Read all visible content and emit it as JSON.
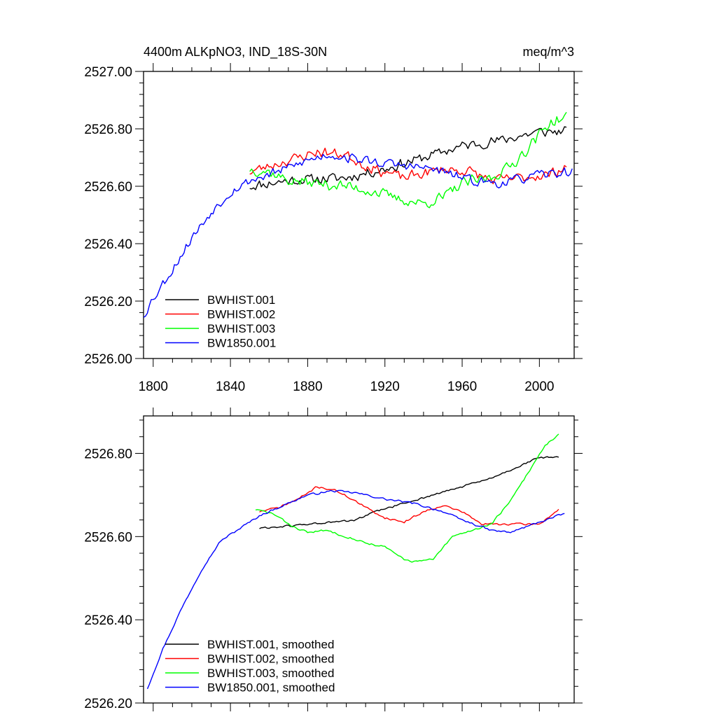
{
  "top": {
    "title_left": "4400m ALKpNO3, IND_18S-30N",
    "title_right": "meq/m^3"
  },
  "chart_data": [
    {
      "type": "line",
      "title": "4400m ALKpNO3, IND_18S-30N",
      "units": "meq/m^3",
      "xlim": [
        1795,
        2018
      ],
      "ylim": [
        2526.0,
        2527.0
      ],
      "xticks": [
        1800,
        1840,
        1880,
        1920,
        1960,
        2000
      ],
      "yticks": [
        2526.0,
        2526.2,
        2526.4,
        2526.6,
        2526.8,
        2527.0
      ],
      "ytick_labels": [
        "2526.00",
        "2526.20",
        "2526.40",
        "2526.60",
        "2526.80",
        "2527.00"
      ],
      "xtick_labels": [
        "1800",
        "1840",
        "1880",
        "1920",
        "1960",
        "2000"
      ],
      "legend": [
        "BWHIST.001",
        "BWHIST.002",
        "BWHIST.003",
        "BW1850.001"
      ],
      "legend_position": "bottom-left",
      "series": [
        {
          "name": "BWHIST.001",
          "color": "#000000",
          "noise": 0.022,
          "seed": 11,
          "keys": [
            [
              1850,
              2526.6
            ],
            [
              1870,
              2526.62
            ],
            [
              1900,
              2526.63
            ],
            [
              1920,
              2526.66
            ],
            [
              1940,
              2526.7
            ],
            [
              1960,
              2526.74
            ],
            [
              1980,
              2526.76
            ],
            [
              2000,
              2526.79
            ],
            [
              2014,
              2526.79
            ]
          ]
        },
        {
          "name": "BWHIST.002",
          "color": "#ff0000",
          "noise": 0.022,
          "seed": 23,
          "keys": [
            [
              1850,
              2526.65
            ],
            [
              1870,
              2526.69
            ],
            [
              1885,
              2526.72
            ],
            [
              1900,
              2526.71
            ],
            [
              1910,
              2526.67
            ],
            [
              1930,
              2526.63
            ],
            [
              1950,
              2526.66
            ],
            [
              1965,
              2526.65
            ],
            [
              1975,
              2526.62
            ],
            [
              1990,
              2526.63
            ],
            [
              2005,
              2526.64
            ],
            [
              2014,
              2526.67
            ]
          ]
        },
        {
          "name": "BWHIST.003",
          "color": "#00ff00",
          "noise": 0.024,
          "seed": 37,
          "keys": [
            [
              1850,
              2526.66
            ],
            [
              1860,
              2526.65
            ],
            [
              1870,
              2526.62
            ],
            [
              1885,
              2526.61
            ],
            [
              1900,
              2526.6
            ],
            [
              1915,
              2526.58
            ],
            [
              1930,
              2526.55
            ],
            [
              1940,
              2526.54
            ],
            [
              1950,
              2526.56
            ],
            [
              1960,
              2526.61
            ],
            [
              1975,
              2526.63
            ],
            [
              1985,
              2526.67
            ],
            [
              1995,
              2526.74
            ],
            [
              2005,
              2526.82
            ],
            [
              2014,
              2526.84
            ]
          ]
        },
        {
          "name": "BW1850.001",
          "color": "#0000ff",
          "noise": 0.02,
          "seed": 53,
          "keys": [
            [
              1795,
              2526.15
            ],
            [
              1800,
              2526.21
            ],
            [
              1810,
              2526.31
            ],
            [
              1820,
              2526.42
            ],
            [
              1830,
              2526.51
            ],
            [
              1840,
              2526.58
            ],
            [
              1850,
              2526.62
            ],
            [
              1860,
              2526.64
            ],
            [
              1880,
              2526.69
            ],
            [
              1890,
              2526.71
            ],
            [
              1900,
              2526.7
            ],
            [
              1920,
              2526.68
            ],
            [
              1945,
              2526.66
            ],
            [
              1965,
              2526.62
            ],
            [
              1980,
              2526.61
            ],
            [
              2000,
              2526.64
            ],
            [
              2017,
              2526.65
            ]
          ]
        }
      ]
    },
    {
      "type": "line",
      "title": "",
      "xlim": [
        1795,
        2018
      ],
      "ylim": [
        2526.2,
        2526.89
      ],
      "xticks": [
        1800,
        1840,
        1880,
        1920,
        1960,
        2000
      ],
      "yticks": [
        2526.2,
        2526.4,
        2526.6,
        2526.8
      ],
      "ytick_labels": [
        "2526.20",
        "2526.40",
        "2526.60",
        "2526.80"
      ],
      "xtick_labels": [],
      "legend": [
        "BWHIST.001, smoothed",
        "BWHIST.002, smoothed",
        "BWHIST.003, smoothed",
        "BW1850.001, smoothed"
      ],
      "legend_position": "bottom-left",
      "series": [
        {
          "name": "BWHIST.001, smoothed",
          "color": "#000000",
          "noise": 0.003,
          "seed": 61,
          "keys": [
            [
              1855,
              2526.62
            ],
            [
              1870,
              2526.625
            ],
            [
              1880,
              2526.63
            ],
            [
              1895,
              2526.635
            ],
            [
              1905,
              2526.64
            ],
            [
              1915,
              2526.66
            ],
            [
              1930,
              2526.68
            ],
            [
              1945,
              2526.7
            ],
            [
              1960,
              2526.72
            ],
            [
              1975,
              2526.74
            ],
            [
              1985,
              2526.76
            ],
            [
              2000,
              2526.79
            ],
            [
              2010,
              2526.79
            ]
          ]
        },
        {
          "name": "BWHIST.002, smoothed",
          "color": "#ff0000",
          "noise": 0.003,
          "seed": 71,
          "keys": [
            [
              1855,
              2526.66
            ],
            [
              1865,
              2526.67
            ],
            [
              1875,
              2526.69
            ],
            [
              1885,
              2526.72
            ],
            [
              1895,
              2526.71
            ],
            [
              1903,
              2526.69
            ],
            [
              1910,
              2526.67
            ],
            [
              1920,
              2526.645
            ],
            [
              1930,
              2526.635
            ],
            [
              1940,
              2526.66
            ],
            [
              1950,
              2526.675
            ],
            [
              1960,
              2526.66
            ],
            [
              1970,
              2526.63
            ],
            [
              1985,
              2526.63
            ],
            [
              2000,
              2526.63
            ],
            [
              2010,
              2526.665
            ]
          ]
        },
        {
          "name": "BWHIST.003, smoothed",
          "color": "#00ff00",
          "noise": 0.003,
          "seed": 83,
          "keys": [
            [
              1853,
              2526.665
            ],
            [
              1862,
              2526.655
            ],
            [
              1872,
              2526.625
            ],
            [
              1880,
              2526.61
            ],
            [
              1890,
              2526.615
            ],
            [
              1900,
              2526.6
            ],
            [
              1910,
              2526.585
            ],
            [
              1920,
              2526.575
            ],
            [
              1930,
              2526.545
            ],
            [
              1935,
              2526.54
            ],
            [
              1945,
              2526.545
            ],
            [
              1955,
              2526.6
            ],
            [
              1965,
              2526.615
            ],
            [
              1975,
              2526.63
            ],
            [
              1985,
              2526.685
            ],
            [
              1995,
              2526.76
            ],
            [
              2003,
              2526.82
            ],
            [
              2010,
              2526.845
            ]
          ]
        },
        {
          "name": "BW1850.001, smoothed",
          "color": "#0000ff",
          "noise": 0.003,
          "seed": 97,
          "keys": [
            [
              1797,
              2526.235
            ],
            [
              1805,
              2526.33
            ],
            [
              1815,
              2526.43
            ],
            [
              1825,
              2526.52
            ],
            [
              1835,
              2526.59
            ],
            [
              1845,
              2526.62
            ],
            [
              1855,
              2526.65
            ],
            [
              1865,
              2526.67
            ],
            [
              1880,
              2526.7
            ],
            [
              1893,
              2526.71
            ],
            [
              1905,
              2526.705
            ],
            [
              1920,
              2526.69
            ],
            [
              1935,
              2526.68
            ],
            [
              1950,
              2526.66
            ],
            [
              1960,
              2526.64
            ],
            [
              1975,
              2526.615
            ],
            [
              1985,
              2526.61
            ],
            [
              2000,
              2526.635
            ],
            [
              2013,
              2526.655
            ]
          ]
        }
      ]
    }
  ]
}
